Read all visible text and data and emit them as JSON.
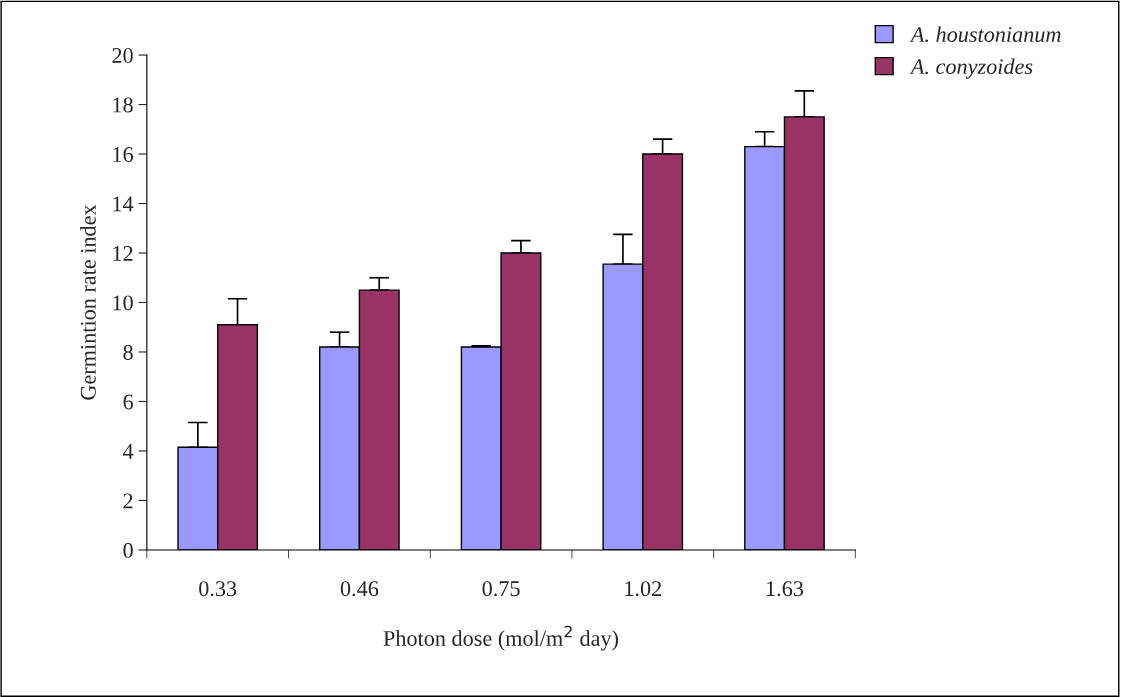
{
  "chart_data": {
    "type": "bar",
    "xlabel": "Photon dose (mol/m$^{2}$ day)",
    "ylabel": "Germintion rate index",
    "categories": [
      "0.33",
      "0.46",
      "0.75",
      "1.02",
      "1.63"
    ],
    "series": [
      {
        "name": "A. houstonianum",
        "color": "#9999ff",
        "values": [
          4.15,
          8.2,
          8.2,
          11.55,
          16.3
        ],
        "errors": [
          [
            4.15,
            5.15
          ],
          [
            8.2,
            8.8
          ],
          [
            8.2,
            8.25
          ],
          [
            11.55,
            12.75
          ],
          [
            16.3,
            16.9
          ]
        ]
      },
      {
        "name": "A. conyzoides",
        "color": "#993366",
        "values": [
          9.1,
          10.5,
          12.0,
          16.0,
          17.5
        ],
        "errors": [
          [
            9.1,
            10.15
          ],
          [
            10.5,
            11.0
          ],
          [
            12.0,
            12.5
          ],
          [
            16.0,
            16.6
          ],
          [
            17.5,
            18.55
          ]
        ]
      }
    ],
    "ylim": [
      0,
      20
    ],
    "yticks": [
      0,
      2,
      4,
      6,
      8,
      10,
      12,
      14,
      16,
      18,
      20
    ],
    "grid": false,
    "legend": "top right"
  }
}
